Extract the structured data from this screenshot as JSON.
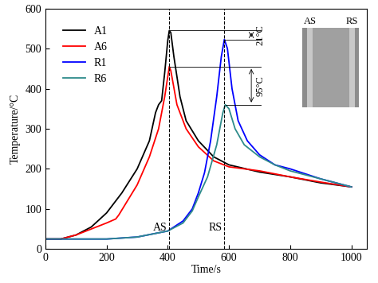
{
  "chart_data": {
    "type": "line",
    "xlabel": "Time/s",
    "ylabel": "Temperature/°C",
    "xlim": [
      0,
      1050
    ],
    "xticks": [
      0,
      200,
      400,
      600,
      800,
      1000
    ],
    "ylim": [
      0,
      600
    ],
    "yticks": [
      0,
      100,
      200,
      300,
      400,
      500,
      600
    ],
    "legend": "upper left",
    "series": [
      {
        "name": "A1",
        "color": "#000000",
        "x": [
          0,
          50,
          100,
          150,
          200,
          250,
          300,
          340,
          360,
          370,
          380,
          390,
          400,
          405,
          410,
          420,
          440,
          460,
          500,
          550,
          600,
          700,
          800,
          900,
          1000
        ],
        "values": [
          25,
          25,
          35,
          55,
          90,
          140,
          200,
          270,
          340,
          360,
          370,
          440,
          520,
          545,
          540,
          480,
          380,
          320,
          270,
          230,
          210,
          192,
          180,
          165,
          155
        ]
      },
      {
        "name": "A6",
        "color": "#ff0000",
        "x": [
          0,
          50,
          100,
          150,
          200,
          230,
          240,
          260,
          300,
          340,
          370,
          390,
          405,
          410,
          430,
          460,
          500,
          550,
          600,
          700,
          800,
          900,
          1000
        ],
        "values": [
          25,
          25,
          35,
          50,
          65,
          75,
          85,
          110,
          160,
          230,
          300,
          380,
          455,
          445,
          360,
          300,
          255,
          220,
          205,
          195,
          180,
          167,
          155
        ]
      },
      {
        "name": "R1",
        "color": "#0000ff",
        "x": [
          0,
          200,
          300,
          400,
          450,
          480,
          500,
          520,
          540,
          560,
          575,
          585,
          595,
          610,
          630,
          660,
          700,
          750,
          800,
          900,
          1000
        ],
        "values": [
          25,
          25,
          30,
          45,
          70,
          100,
          140,
          190,
          270,
          380,
          480,
          523,
          500,
          400,
          320,
          270,
          235,
          210,
          200,
          175,
          155
        ]
      },
      {
        "name": "R6",
        "color": "#2e8b8b",
        "x": [
          0,
          200,
          300,
          400,
          450,
          480,
          500,
          530,
          560,
          580,
          588,
          600,
          620,
          650,
          700,
          750,
          800,
          900,
          1000
        ],
        "values": [
          25,
          25,
          30,
          45,
          65,
          95,
          130,
          180,
          260,
          340,
          360,
          350,
          300,
          260,
          230,
          210,
          195,
          175,
          155
        ]
      }
    ],
    "vlines": [
      {
        "x": 405,
        "label": "AS"
      },
      {
        "x": 585,
        "label": "RS"
      }
    ],
    "annotations": [
      {
        "text": "21°C",
        "from": "A1",
        "to": "R1"
      },
      {
        "text": "95°C",
        "from": "A6",
        "to": "R6"
      }
    ],
    "inset_labels": [
      "AS",
      "RS"
    ]
  }
}
